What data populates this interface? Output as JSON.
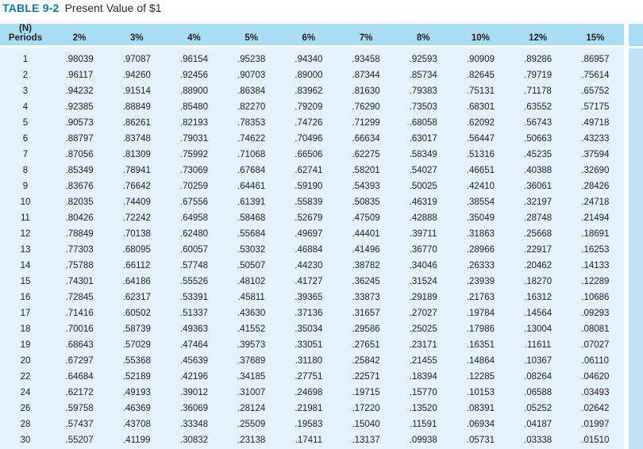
{
  "page": {
    "title_label": "TABLE 9-2",
    "title_text": "Present Value of $1"
  },
  "table": {
    "corner_header": {
      "line1": "(N)",
      "line2": "Periods"
    },
    "rate_headers": [
      "2%",
      "3%",
      "4%",
      "5%",
      "6%",
      "7%",
      "8%",
      "10%",
      "12%",
      "15%"
    ],
    "rows": [
      {
        "period": "1",
        "values": [
          ".98039",
          ".97087",
          ".96154",
          ".95238",
          ".94340",
          ".93458",
          ".92593",
          ".90909",
          ".89286",
          ".86957"
        ]
      },
      {
        "period": "2",
        "values": [
          ".96117",
          ".94260",
          ".92456",
          ".90703",
          ".89000",
          ".87344",
          ".85734",
          ".82645",
          ".79719",
          ".75614"
        ]
      },
      {
        "period": "3",
        "values": [
          ".94232",
          ".91514",
          ".88900",
          ".86384",
          ".83962",
          ".81630",
          ".79383",
          ".75131",
          ".71178",
          ".65752"
        ]
      },
      {
        "period": "4",
        "values": [
          ".92385",
          ".88849",
          ".85480",
          ".82270",
          ".79209",
          ".76290",
          ".73503",
          ".68301",
          ".63552",
          ".57175"
        ]
      },
      {
        "period": "5",
        "values": [
          ".90573",
          ".86261",
          ".82193",
          ".78353",
          ".74726",
          ".71299",
          ".68058",
          ".62092",
          ".56743",
          ".49718"
        ]
      },
      {
        "period": "6",
        "values": [
          ".88797",
          ".83748",
          ".79031",
          ".74622",
          ".70496",
          ".66634",
          ".63017",
          ".56447",
          ".50663",
          ".43233"
        ]
      },
      {
        "period": "7",
        "values": [
          ".87056",
          ".81309",
          ".75992",
          ".71068",
          ".66506",
          ".62275",
          ".58349",
          ".51316",
          ".45235",
          ".37594"
        ]
      },
      {
        "period": "8",
        "values": [
          ".85349",
          ".78941",
          ".73069",
          ".67684",
          ".62741",
          ".58201",
          ".54027",
          ".46651",
          ".40388",
          ".32690"
        ]
      },
      {
        "period": "9",
        "values": [
          ".83676",
          ".76642",
          ".70259",
          ".64461",
          ".59190",
          ".54393",
          ".50025",
          ".42410",
          ".36061",
          ".28426"
        ]
      },
      {
        "period": "10",
        "values": [
          ".82035",
          ".74409",
          ".67556",
          ".61391",
          ".55839",
          ".50835",
          ".46319",
          ".38554",
          ".32197",
          ".24718"
        ]
      },
      {
        "period": "11",
        "values": [
          ".80426",
          ".72242",
          ".64958",
          ".58468",
          ".52679",
          ".47509",
          ".42888",
          ".35049",
          ".28748",
          ".21494"
        ]
      },
      {
        "period": "12",
        "values": [
          ".78849",
          ".70138",
          ".62480",
          ".55684",
          ".49697",
          ".44401",
          ".39711",
          ".31863",
          ".25668",
          ".18691"
        ]
      },
      {
        "period": "13",
        "values": [
          ".77303",
          ".68095",
          ".60057",
          ".53032",
          ".46884",
          ".41496",
          ".36770",
          ".28966",
          ".22917",
          ".16253"
        ]
      },
      {
        "period": "14",
        "values": [
          ".75788",
          ".66112",
          ".57748",
          ".50507",
          ".44230",
          ".38782",
          ".34046",
          ".26333",
          ".20462",
          ".14133"
        ]
      },
      {
        "period": "15",
        "values": [
          ".74301",
          ".64186",
          ".55526",
          ".48102",
          ".41727",
          ".36245",
          ".31524",
          ".23939",
          ".18270",
          ".12289"
        ]
      },
      {
        "period": "16",
        "values": [
          ".72845",
          ".62317",
          ".53391",
          ".45811",
          ".39365",
          ".33873",
          ".29189",
          ".21763",
          ".16312",
          ".10686"
        ]
      },
      {
        "period": "17",
        "values": [
          ".71416",
          ".60502",
          ".51337",
          ".43630",
          ".37136",
          ".31657",
          ".27027",
          ".19784",
          ".14564",
          ".09293"
        ]
      },
      {
        "period": "18",
        "values": [
          ".70016",
          ".58739",
          ".49363",
          ".41552",
          ".35034",
          ".29586",
          ".25025",
          ".17986",
          ".13004",
          ".08081"
        ]
      },
      {
        "period": "19",
        "values": [
          ".68643",
          ".57029",
          ".47464",
          ".39573",
          ".33051",
          ".27651",
          ".23171",
          ".16351",
          ".11611",
          ".07027"
        ]
      },
      {
        "period": "20",
        "values": [
          ".67297",
          ".55368",
          ".45639",
          ".37689",
          ".31180",
          ".25842",
          ".21455",
          ".14864",
          ".10367",
          ".06110"
        ]
      },
      {
        "period": "22",
        "values": [
          ".64684",
          ".52189",
          ".42196",
          ".34185",
          ".27751",
          ".22571",
          ".18394",
          ".12285",
          ".08264",
          ".04620"
        ]
      },
      {
        "period": "24",
        "values": [
          ".62172",
          ".49193",
          ".39012",
          ".31007",
          ".24698",
          ".19715",
          ".15770",
          ".10153",
          ".06588",
          ".03493"
        ]
      },
      {
        "period": "26",
        "values": [
          ".59758",
          ".46369",
          ".36069",
          ".28124",
          ".21981",
          ".17220",
          ".13520",
          ".08391",
          ".05252",
          ".02642"
        ]
      },
      {
        "period": "28",
        "values": [
          ".57437",
          ".43708",
          ".33348",
          ".25509",
          ".19583",
          ".15040",
          ".11591",
          ".06934",
          ".04187",
          ".01997"
        ]
      },
      {
        "period": "30",
        "values": [
          ".55207",
          ".41199",
          ".30832",
          ".23138",
          ".17411",
          ".13137",
          ".09938",
          ".05731",
          ".03338",
          ".01510"
        ]
      }
    ]
  },
  "colors": {
    "title_label": "#0c7ba3",
    "header_bg": "#a9ddf3",
    "body_bg": "#e4f2fb",
    "strip_bg": "#bfe4f6",
    "text": "#231f20"
  }
}
